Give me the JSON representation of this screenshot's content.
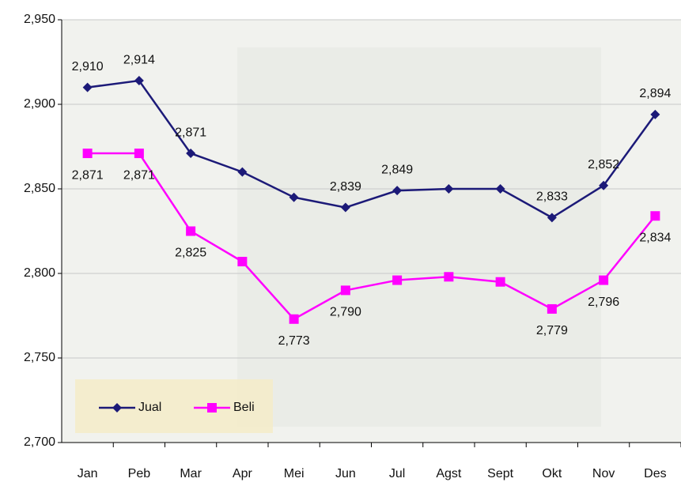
{
  "chart_data": {
    "type": "line",
    "categories": [
      "Jan",
      "Peb",
      "Mar",
      "Apr",
      "Mei",
      "Jun",
      "Jul",
      "Agst",
      "Sept",
      "Okt",
      "Nov",
      "Des"
    ],
    "series": [
      {
        "name": "Jual",
        "color": "#1c1a78",
        "marker": "diamond",
        "values": [
          2910,
          2914,
          2871,
          2860,
          2845,
          2839,
          2849,
          2850,
          2850,
          2833,
          2852,
          2894
        ],
        "value_labels": [
          "2,910",
          "2,914",
          "2,871",
          null,
          null,
          "2,839",
          "2,849",
          null,
          null,
          "2,833",
          "2,852",
          "2,894"
        ]
      },
      {
        "name": "Beli",
        "color": "#ff00ff",
        "marker": "square",
        "values": [
          2871,
          2871,
          2825,
          2807,
          2773,
          2790,
          2796,
          2798,
          2795,
          2779,
          2796,
          2834
        ],
        "value_labels": [
          "2,871",
          "2,871",
          "2,825",
          null,
          "2,773",
          "2,790",
          null,
          null,
          null,
          "2,779",
          "2,796",
          "2,834"
        ]
      }
    ],
    "ylim": [
      2700,
      2950
    ],
    "yticks": [
      {
        "value": 2700,
        "label": "2,700"
      },
      {
        "value": 2750,
        "label": "2,750"
      },
      {
        "value": 2800,
        "label": "2,800"
      },
      {
        "value": 2850,
        "label": "2,850"
      },
      {
        "value": 2900,
        "label": "2,900"
      },
      {
        "value": 2950,
        "label": "2,950"
      }
    ],
    "grid": true,
    "legend": "lower left"
  }
}
